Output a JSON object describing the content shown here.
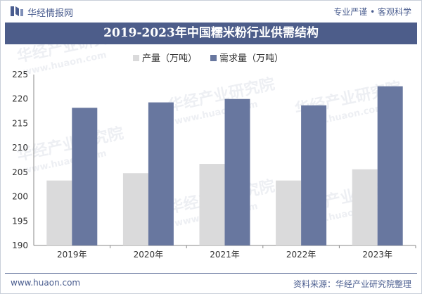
{
  "header": {
    "brand": "华经情报网",
    "slogan": "专业严谨 • 客观科学"
  },
  "title": "2019-2023年中国糯米粉行业供需结构",
  "footer": {
    "website": "www.huaon.com",
    "source": "资料来源：华经产业研究院整理"
  },
  "watermark": {
    "text_cn": "华经产业研究院",
    "text_url": "www.huaon.com"
  },
  "colors": {
    "production": "#dadadb",
    "demand": "#68779f",
    "title_bg": "#4d5d8a",
    "brand": "#4a5d8f"
  },
  "chart_data": {
    "type": "bar",
    "categories": [
      "2019年",
      "2020年",
      "2021年",
      "2022年",
      "2023年"
    ],
    "series": [
      {
        "name": "产量（万吨）",
        "values": [
          203.3,
          204.8,
          206.7,
          203.3,
          205.6
        ]
      },
      {
        "name": "需求量（万吨）",
        "values": [
          218.2,
          219.3,
          220.0,
          218.7,
          222.6
        ]
      }
    ],
    "ylim": [
      190,
      225
    ],
    "yticks": [
      190,
      195,
      200,
      205,
      210,
      215,
      220,
      225
    ],
    "legend_position": "top-left"
  }
}
